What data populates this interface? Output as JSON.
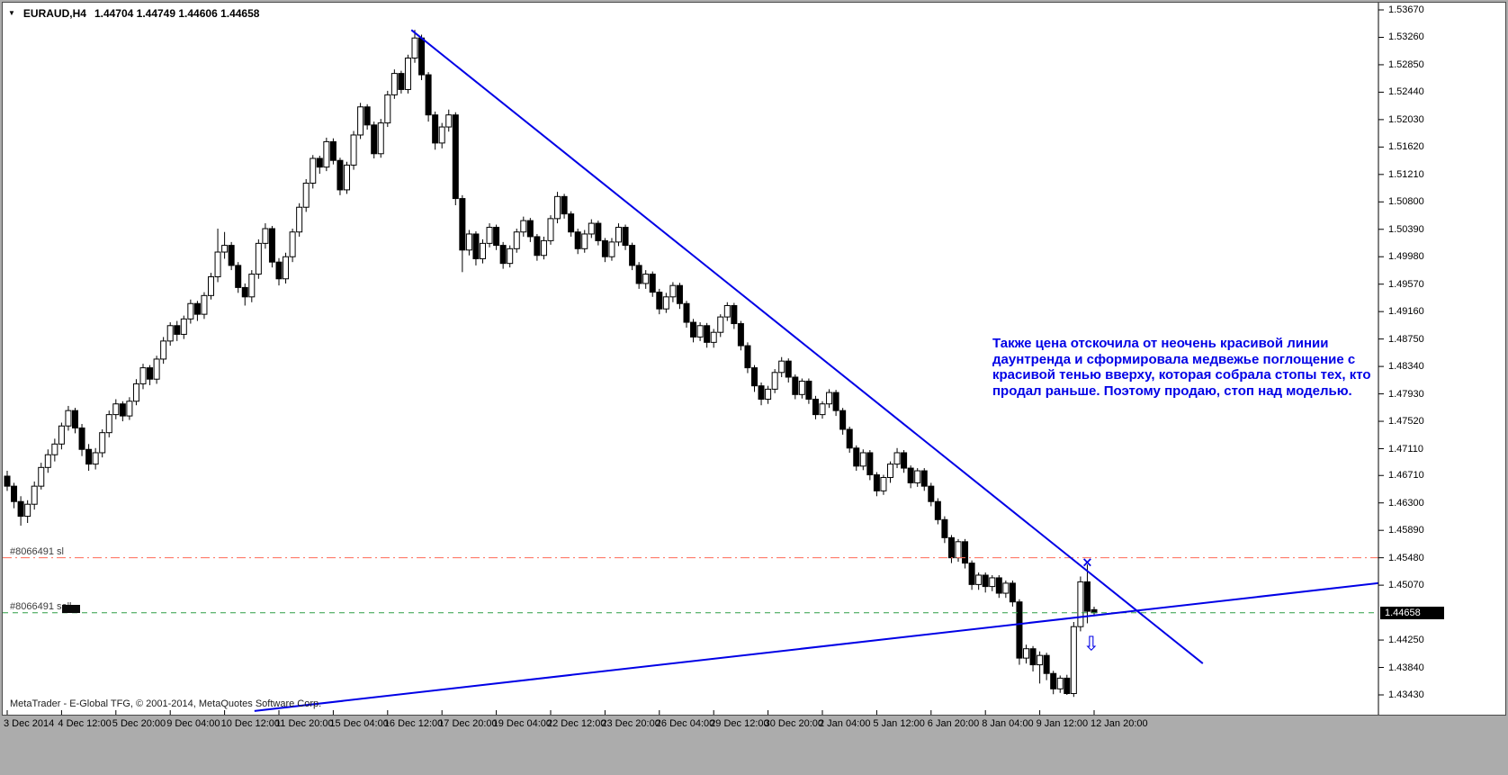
{
  "header": {
    "symbol_period": "EURAUD,H4",
    "ohlc": "1.44704 1.44749 1.44606 1.44658",
    "marker_glyph": "▼"
  },
  "annotation": {
    "text": "Также цена отскочила от неочень красивой линии\nдаунтренда и сформировала медвежье поглощение с\nкрасивой тенью вверху, которая собрала стопы тех, кто\nпродал раньше. Поэтому продаю, стоп над моделью.",
    "color": "#0000e6"
  },
  "footer": {
    "copyright": "MetaTrader - E-Global TFG, © 2001-2014, MetaQuotes Software Corp."
  },
  "chart_data": {
    "type": "candlestick",
    "symbol": "EURAUD",
    "timeframe": "H4",
    "title": "EURAUD,H4",
    "grid": "off",
    "legend": "none",
    "y_axis_side": "right",
    "current_price_label": "1.44658",
    "current_price": 1.44658,
    "y_ticks": [
      "1.53670",
      "1.53260",
      "1.52850",
      "1.52440",
      "1.52030",
      "1.51620",
      "1.51210",
      "1.50800",
      "1.50390",
      "1.49980",
      "1.49570",
      "1.49160",
      "1.48750",
      "1.48340",
      "1.47930",
      "1.47520",
      "1.47110",
      "1.46710",
      "1.46300",
      "1.45890",
      "1.45480",
      "1.45070",
      "1.44250",
      "1.43840",
      "1.43430"
    ],
    "x_labels": [
      "3 Dec 2014",
      "4 Dec 12:00",
      "5 Dec 20:00",
      "9 Dec 04:00",
      "10 Dec 12:00",
      "11 Dec 20:00",
      "15 Dec 04:00",
      "16 Dec 12:00",
      "17 Dec 20:00",
      "19 Dec 04:00",
      "22 Dec 12:00",
      "23 Dec 20:00",
      "26 Dec 04:00",
      "29 Dec 12:00",
      "30 Dec 20:00",
      "2 Jan 04:00",
      "5 Jan 12:00",
      "6 Jan 20:00",
      "8 Jan 04:00",
      "9 Jan 12:00",
      "12 Jan 20:00"
    ],
    "x_label_every": 8,
    "colors": {
      "candle": "#000000",
      "bull_body": "#ffffff",
      "bear_body": "#000000",
      "trend": "#0000e6",
      "axis": "#000000",
      "badge_bg": "#000000",
      "badge_text": "#ffffff"
    },
    "order_lines": [
      {
        "name": "stop-loss-line",
        "label": "#8066491 sl",
        "price": 1.4548,
        "color": "#ff6b57",
        "dash": "10 4 2 4",
        "marker": false
      },
      {
        "name": "sell-order-line",
        "label": "#8066491 sell",
        "price": 1.44658,
        "color": "#2e9e45",
        "dash": "6 5",
        "marker": true
      }
    ],
    "trendlines": [
      {
        "name": "downtrend-line",
        "from": {
          "index": 59.5,
          "price": 1.5337
        },
        "to": {
          "index": 176,
          "price": 1.439
        }
      },
      {
        "name": "uptrend-line",
        "from": {
          "index": 36.4,
          "price": 1.4319
        },
        "to": {
          "index": 201.8,
          "price": 1.451
        }
      }
    ],
    "marks": [
      {
        "name": "x-mark",
        "glyph": "×",
        "index": 159.0,
        "price": 1.45425,
        "size": 15,
        "weight": "bold"
      },
      {
        "name": "down-arrow-icon",
        "glyph": "⇩",
        "index": 159.6,
        "price": 1.4421,
        "size": 22,
        "weight": "normal"
      }
    ],
    "ohlc": [
      [
        1.467,
        1.4678,
        1.4648,
        1.4655
      ],
      [
        1.4655,
        1.466,
        1.4622,
        1.4632
      ],
      [
        1.4632,
        1.464,
        1.4596,
        1.461
      ],
      [
        1.461,
        1.4634,
        1.46,
        1.4628
      ],
      [
        1.4628,
        1.4662,
        1.462,
        1.4655
      ],
      [
        1.4655,
        1.469,
        1.465,
        1.4683
      ],
      [
        1.4683,
        1.471,
        1.4675,
        1.4702
      ],
      [
        1.4702,
        1.4726,
        1.4692,
        1.4718
      ],
      [
        1.4718,
        1.475,
        1.471,
        1.4745
      ],
      [
        1.4745,
        1.4775,
        1.4738,
        1.4768
      ],
      [
        1.4768,
        1.4772,
        1.4734,
        1.4742
      ],
      [
        1.4742,
        1.4748,
        1.47,
        1.471
      ],
      [
        1.471,
        1.4718,
        1.4678,
        1.4688
      ],
      [
        1.4688,
        1.4712,
        1.468,
        1.4705
      ],
      [
        1.4705,
        1.474,
        1.4698,
        1.4735
      ],
      [
        1.4735,
        1.4768,
        1.4728,
        1.4762
      ],
      [
        1.4762,
        1.4785,
        1.4755,
        1.4778
      ],
      [
        1.4778,
        1.4782,
        1.4752,
        1.476
      ],
      [
        1.476,
        1.4788,
        1.4754,
        1.4782
      ],
      [
        1.4782,
        1.4815,
        1.4776,
        1.4808
      ],
      [
        1.4808,
        1.4838,
        1.48,
        1.4832
      ],
      [
        1.4832,
        1.4836,
        1.4806,
        1.4815
      ],
      [
        1.4815,
        1.485,
        1.4808,
        1.4845
      ],
      [
        1.4845,
        1.4878,
        1.4838,
        1.4872
      ],
      [
        1.4872,
        1.49,
        1.4865,
        1.4895
      ],
      [
        1.4895,
        1.4902,
        1.4872,
        1.4882
      ],
      [
        1.4882,
        1.491,
        1.4875,
        1.4905
      ],
      [
        1.4905,
        1.4934,
        1.4898,
        1.4928
      ],
      [
        1.4928,
        1.4932,
        1.4902,
        1.4912
      ],
      [
        1.4912,
        1.4945,
        1.4905,
        1.494
      ],
      [
        1.494,
        1.4974,
        1.4934,
        1.4968
      ],
      [
        1.4968,
        1.504,
        1.496,
        1.5005
      ],
      [
        1.5005,
        1.5035,
        1.4995,
        1.5015
      ],
      [
        1.5015,
        1.502,
        1.4978,
        1.4985
      ],
      [
        1.4985,
        1.499,
        1.4944,
        1.4952
      ],
      [
        1.4952,
        1.4958,
        1.4925,
        1.4938
      ],
      [
        1.4938,
        1.4978,
        1.493,
        1.4972
      ],
      [
        1.4972,
        1.5024,
        1.4965,
        1.5018
      ],
      [
        1.5018,
        1.5048,
        1.501,
        1.504
      ],
      [
        1.504,
        1.5044,
        1.4982,
        1.499
      ],
      [
        1.499,
        1.4996,
        1.4955,
        1.4965
      ],
      [
        1.4965,
        1.5004,
        1.4958,
        1.4998
      ],
      [
        1.4998,
        1.504,
        1.499,
        1.5035
      ],
      [
        1.5035,
        1.5078,
        1.5028,
        1.5072
      ],
      [
        1.5072,
        1.5114,
        1.5065,
        1.5108
      ],
      [
        1.5108,
        1.515,
        1.51,
        1.5145
      ],
      [
        1.5145,
        1.5149,
        1.5122,
        1.5132
      ],
      [
        1.5132,
        1.5176,
        1.5126,
        1.517
      ],
      [
        1.517,
        1.5175,
        1.5136,
        1.5142
      ],
      [
        1.5142,
        1.5146,
        1.509,
        1.5098
      ],
      [
        1.5098,
        1.514,
        1.5092,
        1.5135
      ],
      [
        1.5135,
        1.5186,
        1.5128,
        1.518
      ],
      [
        1.518,
        1.5228,
        1.5174,
        1.5222
      ],
      [
        1.5222,
        1.5226,
        1.5188,
        1.5195
      ],
      [
        1.5195,
        1.52,
        1.5145,
        1.5152
      ],
      [
        1.5152,
        1.5204,
        1.5146,
        1.5198
      ],
      [
        1.5198,
        1.5246,
        1.5192,
        1.524
      ],
      [
        1.524,
        1.5278,
        1.5234,
        1.5272
      ],
      [
        1.5272,
        1.5276,
        1.5242,
        1.5248
      ],
      [
        1.5248,
        1.53,
        1.5242,
        1.5295
      ],
      [
        1.5295,
        1.5337,
        1.5288,
        1.5325
      ],
      [
        1.5325,
        1.533,
        1.5262,
        1.527
      ],
      [
        1.527,
        1.5274,
        1.52,
        1.521
      ],
      [
        1.521,
        1.5215,
        1.5158,
        1.5168
      ],
      [
        1.5168,
        1.5198,
        1.516,
        1.5192
      ],
      [
        1.5192,
        1.5218,
        1.5185,
        1.521
      ],
      [
        1.521,
        1.5214,
        1.5075,
        1.5085
      ],
      [
        1.5085,
        1.509,
        1.4975,
        1.5008
      ],
      [
        1.5008,
        1.5038,
        1.5,
        1.5032
      ],
      [
        1.5032,
        1.5036,
        1.4985,
        1.4995
      ],
      [
        1.4995,
        1.5024,
        1.4988,
        1.5018
      ],
      [
        1.5018,
        1.5048,
        1.5012,
        1.5042
      ],
      [
        1.5042,
        1.5046,
        1.5008,
        1.5015
      ],
      [
        1.5015,
        1.502,
        1.498,
        1.4988
      ],
      [
        1.4988,
        1.5015,
        1.4982,
        1.501
      ],
      [
        1.501,
        1.504,
        1.5004,
        1.5035
      ],
      [
        1.5035,
        1.5058,
        1.5028,
        1.5052
      ],
      [
        1.5052,
        1.5056,
        1.502,
        1.5028
      ],
      [
        1.5028,
        1.5032,
        1.4992,
        1.5
      ],
      [
        1.5,
        1.5028,
        1.4994,
        1.5022
      ],
      [
        1.5022,
        1.506,
        1.5016,
        1.5055
      ],
      [
        1.5055,
        1.5095,
        1.5048,
        1.5088
      ],
      [
        1.5088,
        1.5092,
        1.5055,
        1.5062
      ],
      [
        1.5062,
        1.5066,
        1.5028,
        1.5035
      ],
      [
        1.5035,
        1.504,
        1.5002,
        1.501
      ],
      [
        1.501,
        1.5038,
        1.5004,
        1.5032
      ],
      [
        1.5032,
        1.5054,
        1.5026,
        1.5048
      ],
      [
        1.5048,
        1.5052,
        1.5015,
        1.5022
      ],
      [
        1.5022,
        1.5026,
        1.499,
        1.4998
      ],
      [
        1.4998,
        1.5026,
        1.4992,
        1.502
      ],
      [
        1.502,
        1.5048,
        1.5014,
        1.5042
      ],
      [
        1.5042,
        1.5046,
        1.5008,
        1.5015
      ],
      [
        1.5015,
        1.5019,
        1.4978,
        1.4985
      ],
      [
        1.4985,
        1.499,
        1.495,
        1.4958
      ],
      [
        1.4958,
        1.4978,
        1.495,
        1.4972
      ],
      [
        1.4972,
        1.4976,
        1.4938,
        1.4945
      ],
      [
        1.4945,
        1.495,
        1.4912,
        1.492
      ],
      [
        1.492,
        1.4944,
        1.4914,
        1.4938
      ],
      [
        1.4938,
        1.496,
        1.493,
        1.4955
      ],
      [
        1.4955,
        1.4959,
        1.492,
        1.4928
      ],
      [
        1.4928,
        1.4932,
        1.4892,
        1.49
      ],
      [
        1.49,
        1.4905,
        1.487,
        1.4878
      ],
      [
        1.4878,
        1.49,
        1.4872,
        1.4895
      ],
      [
        1.4895,
        1.4899,
        1.4862,
        1.487
      ],
      [
        1.487,
        1.489,
        1.4862,
        1.4885
      ],
      [
        1.4885,
        1.4912,
        1.4878,
        1.4908
      ],
      [
        1.4908,
        1.493,
        1.4902,
        1.4925
      ],
      [
        1.4925,
        1.4929,
        1.489,
        1.4898
      ],
      [
        1.4898,
        1.4902,
        1.4858,
        1.4865
      ],
      [
        1.4865,
        1.487,
        1.4824,
        1.4832
      ],
      [
        1.4832,
        1.4836,
        1.4796,
        1.4805
      ],
      [
        1.4805,
        1.481,
        1.4776,
        1.4785
      ],
      [
        1.4785,
        1.4805,
        1.4778,
        1.48
      ],
      [
        1.48,
        1.483,
        1.4794,
        1.4825
      ],
      [
        1.4825,
        1.4848,
        1.4818,
        1.4842
      ],
      [
        1.4842,
        1.4846,
        1.481,
        1.4818
      ],
      [
        1.4818,
        1.4822,
        1.4785,
        1.4792
      ],
      [
        1.4792,
        1.4816,
        1.4786,
        1.4812
      ],
      [
        1.4812,
        1.4816,
        1.4778,
        1.4785
      ],
      [
        1.4785,
        1.479,
        1.4755,
        1.4762
      ],
      [
        1.4762,
        1.4782,
        1.4756,
        1.4778
      ],
      [
        1.4778,
        1.48,
        1.4772,
        1.4795
      ],
      [
        1.4795,
        1.4799,
        1.476,
        1.4768
      ],
      [
        1.4768,
        1.4772,
        1.4732,
        1.474
      ],
      [
        1.474,
        1.4744,
        1.4705,
        1.4712
      ],
      [
        1.4712,
        1.4716,
        1.4678,
        1.4685
      ],
      [
        1.4685,
        1.471,
        1.4679,
        1.4705
      ],
      [
        1.4705,
        1.4709,
        1.4664,
        1.4672
      ],
      [
        1.4672,
        1.4676,
        1.464,
        1.4648
      ],
      [
        1.4648,
        1.4672,
        1.4642,
        1.4668
      ],
      [
        1.4668,
        1.4692,
        1.466,
        1.4688
      ],
      [
        1.4688,
        1.4712,
        1.4682,
        1.4705
      ],
      [
        1.4705,
        1.4709,
        1.4675,
        1.4682
      ],
      [
        1.4682,
        1.4686,
        1.4652,
        1.466
      ],
      [
        1.466,
        1.4682,
        1.4654,
        1.4678
      ],
      [
        1.4678,
        1.4682,
        1.4648,
        1.4655
      ],
      [
        1.4655,
        1.466,
        1.4625,
        1.4632
      ],
      [
        1.4632,
        1.4637,
        1.4598,
        1.4605
      ],
      [
        1.4605,
        1.461,
        1.457,
        1.4578
      ],
      [
        1.4578,
        1.4582,
        1.454,
        1.4548
      ],
      [
        1.4548,
        1.4576,
        1.4542,
        1.4572
      ],
      [
        1.4572,
        1.4576,
        1.4532,
        1.454
      ],
      [
        1.454,
        1.4544,
        1.45,
        1.4508
      ],
      [
        1.4508,
        1.4526,
        1.45,
        1.4522
      ],
      [
        1.4522,
        1.4526,
        1.4496,
        1.4505
      ],
      [
        1.4505,
        1.4522,
        1.4498,
        1.4518
      ],
      [
        1.4518,
        1.4522,
        1.4488,
        1.4495
      ],
      [
        1.4495,
        1.4514,
        1.4488,
        1.451
      ],
      [
        1.451,
        1.4514,
        1.4475,
        1.4482
      ],
      [
        1.4482,
        1.4486,
        1.4388,
        1.4398
      ],
      [
        1.4398,
        1.4418,
        1.439,
        1.4412
      ],
      [
        1.4412,
        1.4416,
        1.4378,
        1.4388
      ],
      [
        1.4388,
        1.4408,
        1.436,
        1.4402
      ],
      [
        1.4402,
        1.4406,
        1.4365,
        1.4375
      ],
      [
        1.4375,
        1.4379,
        1.4344,
        1.4352
      ],
      [
        1.4352,
        1.4372,
        1.4346,
        1.4368
      ],
      [
        1.4368,
        1.4373,
        1.4343,
        1.4345
      ],
      [
        1.4345,
        1.4452,
        1.434,
        1.4445
      ],
      [
        1.4445,
        1.452,
        1.4438,
        1.4512
      ],
      [
        1.4512,
        1.4538,
        1.445,
        1.4468
      ],
      [
        1.44704,
        1.44749,
        1.44606,
        1.44658
      ]
    ]
  }
}
